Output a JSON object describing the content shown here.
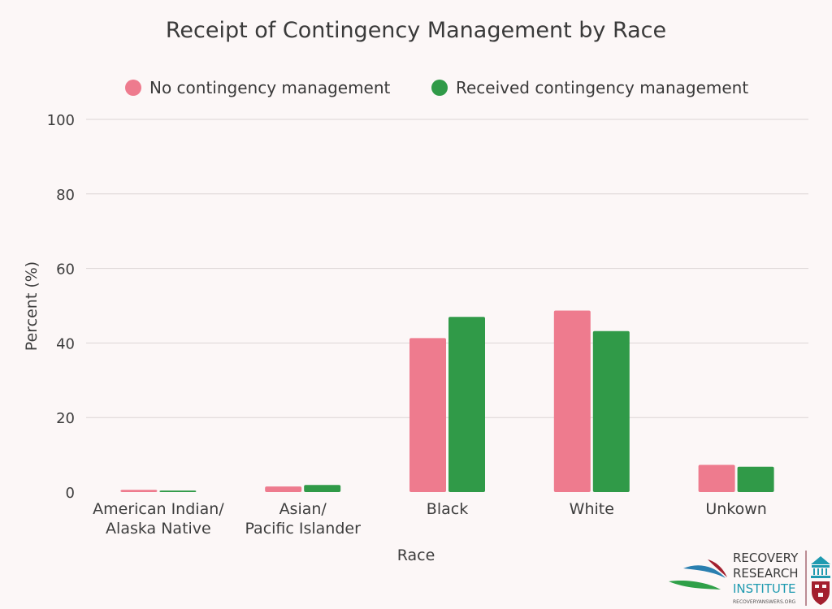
{
  "chart_data": {
    "type": "bar",
    "title": "Receipt of Contingency Management by Race",
    "xlabel": "Race",
    "ylabel": "Percent (%)",
    "ylim": [
      0,
      100
    ],
    "yticks": [
      0,
      20,
      40,
      60,
      80,
      100
    ],
    "grid": true,
    "legend_position": "top-center",
    "categories": [
      [
        "American Indian/",
        "Alaska Native"
      ],
      [
        "Asian/",
        "Pacific Islander"
      ],
      [
        "Black"
      ],
      [
        "White"
      ],
      [
        "Unkown"
      ]
    ],
    "series": [
      {
        "name": "No contingency management",
        "color": "#ee7b8e",
        "values": [
          0.6,
          1.5,
          41.3,
          48.7,
          7.3
        ]
      },
      {
        "name": "Received contingency management",
        "color": "#309a48",
        "values": [
          0.4,
          1.9,
          47.0,
          43.2,
          6.8
        ]
      }
    ]
  },
  "logo": {
    "line1": "RECOVERY",
    "line2": "RESEARCH",
    "line3": "INSTITUTE",
    "url": "RECOVERYANSWERS.ORG"
  }
}
